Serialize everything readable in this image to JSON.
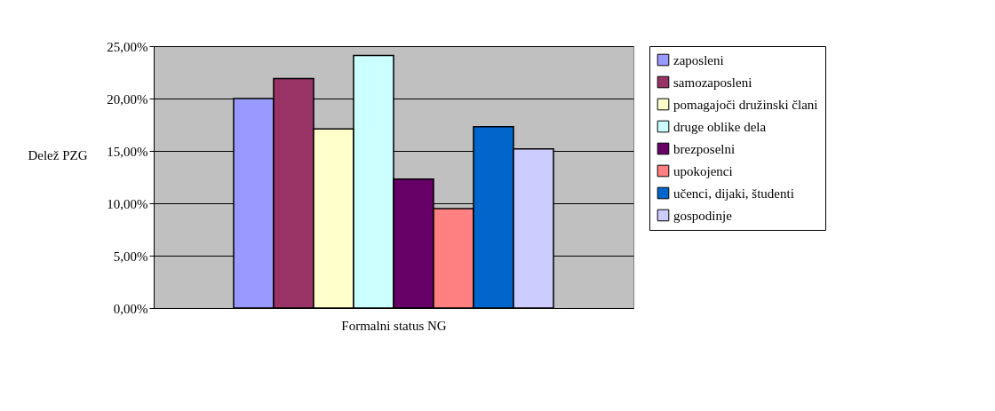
{
  "chart_data": {
    "type": "bar",
    "xlabel": "Formalni status NG",
    "ylabel": "Delež PZG",
    "categories": [
      null
    ],
    "series": [
      {
        "name": "zaposleni",
        "color": "#9999ff",
        "values": [
          20.0
        ]
      },
      {
        "name": "samozaposleni",
        "color": "#993366",
        "values": [
          21.9
        ]
      },
      {
        "name": "pomagajoči družinski člani",
        "color": "#ffffcc",
        "values": [
          17.1
        ]
      },
      {
        "name": "druge oblike dela",
        "color": "#ccffff",
        "values": [
          24.1
        ]
      },
      {
        "name": "brezposelni",
        "color": "#660066",
        "values": [
          12.3
        ]
      },
      {
        "name": "upokojenci",
        "color": "#ff8080",
        "values": [
          9.5
        ]
      },
      {
        "name": "učenci, dijaki, študenti",
        "color": "#0066cc",
        "values": [
          17.3
        ]
      },
      {
        "name": "gospodinje",
        "color": "#ccccff",
        "values": [
          15.2
        ]
      }
    ],
    "ylim": [
      0,
      25
    ],
    "yticks": [
      {
        "value": 0,
        "label": "0,00%"
      },
      {
        "value": 5,
        "label": "5,00%"
      },
      {
        "value": 10,
        "label": "10,00%"
      },
      {
        "value": 15,
        "label": "15,00%"
      },
      {
        "value": 20,
        "label": "20,00%"
      },
      {
        "value": 25,
        "label": "25,00%"
      }
    ],
    "grid": "y",
    "legend": "right"
  }
}
